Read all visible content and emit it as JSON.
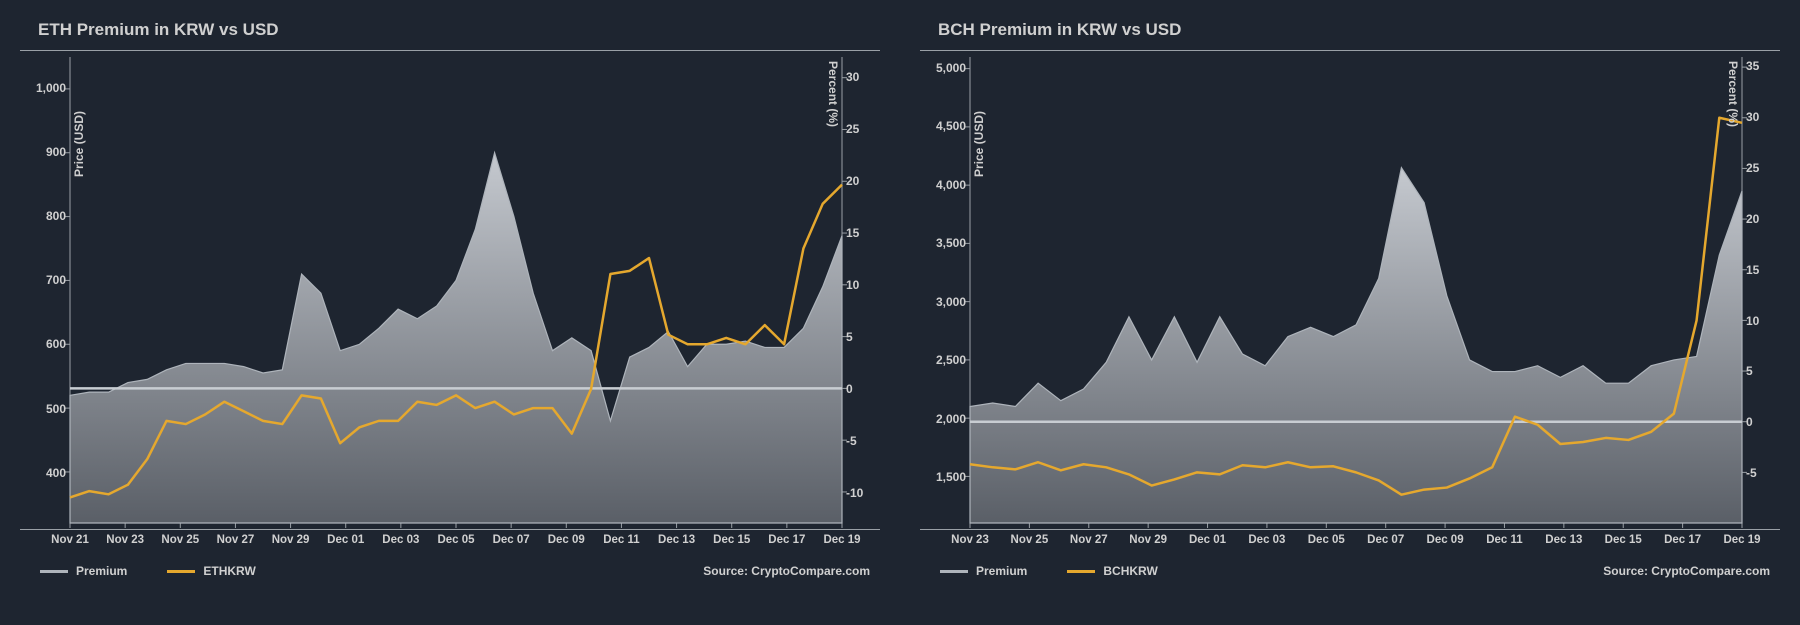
{
  "background_color": "#1e2530",
  "text_color": "#d0d0d0",
  "area_gradient_top": "#c5c9cf",
  "area_gradient_bottom": "#6a6f77",
  "area_stroke": "#aeb4bb",
  "zero_line_color": "#c8cdd2",
  "source_label": "Source: CryptoCompare.com",
  "panels": [
    {
      "id": "eth",
      "title": "ETH Premium in KRW vs USD",
      "y_left": {
        "title": "Price (USD)",
        "min": 320,
        "max": 1050,
        "ticks": [
          400,
          500,
          600,
          700,
          800,
          900,
          1000
        ]
      },
      "y_right": {
        "title": "Percent (%)",
        "min": -13,
        "max": 32,
        "ticks": [
          -10,
          -5,
          0,
          5,
          10,
          15,
          20,
          25,
          30
        ],
        "zero": 0
      },
      "x": {
        "ticks": [
          "Nov 21",
          "Nov 23",
          "Nov 25",
          "Nov 27",
          "Nov 29",
          "Dec 01",
          "Dec 03",
          "Dec 05",
          "Dec 07",
          "Dec 09",
          "Dec 11",
          "Dec 13",
          "Dec 15",
          "Dec 17",
          "Dec 19"
        ]
      },
      "legend": [
        {
          "label": "Premium",
          "color": "#aeb4bb"
        },
        {
          "label": "ETHKRW",
          "color": "#e5a82e"
        }
      ],
      "area_series": {
        "name": "Premium",
        "axis": "left",
        "values": [
          360,
          370,
          365,
          380,
          420,
          480,
          475,
          490,
          510,
          495,
          480,
          475,
          520,
          515,
          445,
          470,
          480,
          480,
          510,
          505,
          520,
          500,
          510,
          490,
          500,
          500,
          460,
          530,
          710,
          715,
          735,
          615,
          600,
          600,
          610,
          600,
          630,
          600,
          750,
          820,
          850
        ]
      },
      "line_series": {
        "name": "ETHKRW",
        "axis": "left",
        "color": "#e5a82e",
        "values": [
          520,
          525,
          525,
          540,
          545,
          560,
          570,
          570,
          570,
          565,
          555,
          560,
          710,
          680,
          590,
          600,
          625,
          655,
          640,
          660,
          700,
          780,
          900,
          800,
          680,
          590,
          610,
          590,
          480,
          580,
          595,
          620,
          565,
          600,
          600,
          605,
          595,
          595,
          625,
          690,
          770
        ]
      }
    },
    {
      "id": "bch",
      "title": "BCH Premium in KRW vs USD",
      "y_left": {
        "title": "Price (USD)",
        "min": 1100,
        "max": 5100,
        "ticks": [
          1500,
          2000,
          2500,
          3000,
          3500,
          4000,
          4500,
          5000
        ]
      },
      "y_right": {
        "title": "Percent (%)",
        "min": -10,
        "max": 36,
        "ticks": [
          -5,
          0,
          5,
          10,
          15,
          20,
          25,
          30,
          35
        ],
        "zero": 0
      },
      "x": {
        "ticks": [
          "Nov 23",
          "Nov 25",
          "Nov 27",
          "Nov 29",
          "Dec 01",
          "Dec 03",
          "Dec 05",
          "Dec 07",
          "Dec 09",
          "Dec 11",
          "Dec 13",
          "Dec 15",
          "Dec 17",
          "Dec 19"
        ]
      },
      "legend": [
        {
          "label": "Premium",
          "color": "#aeb4bb"
        },
        {
          "label": "BCHKRW",
          "color": "#e5a82e"
        }
      ],
      "area_series": {
        "name": "Premium",
        "axis": "right",
        "values": [
          -4.2,
          -4.5,
          -4.7,
          -4.0,
          -4.8,
          -4.2,
          -4.5,
          -5.2,
          -6.3,
          -5.7,
          -5.0,
          -5.2,
          -4.3,
          -4.5,
          -4.0,
          -4.5,
          -4.4,
          -5.0,
          -5.8,
          -7.2,
          -6.7,
          -6.5,
          -5.6,
          -4.5,
          0.5,
          -0.3,
          -2.2,
          -2.0,
          -1.6,
          -1.8,
          -1.0,
          0.8,
          10,
          30,
          29.5
        ]
      },
      "line_series": {
        "name": "BCHKRW",
        "axis": "left",
        "color": "#e5a82e",
        "values": [
          2100,
          2130,
          2100,
          2300,
          2150,
          2250,
          2480,
          2870,
          2500,
          2870,
          2480,
          2870,
          2550,
          2450,
          2700,
          2780,
          2700,
          2800,
          3200,
          4150,
          3850,
          3050,
          2500,
          2400,
          2400,
          2450,
          2350,
          2450,
          2300,
          2300,
          2450,
          2500,
          2530,
          3400,
          3950
        ]
      }
    }
  ]
}
